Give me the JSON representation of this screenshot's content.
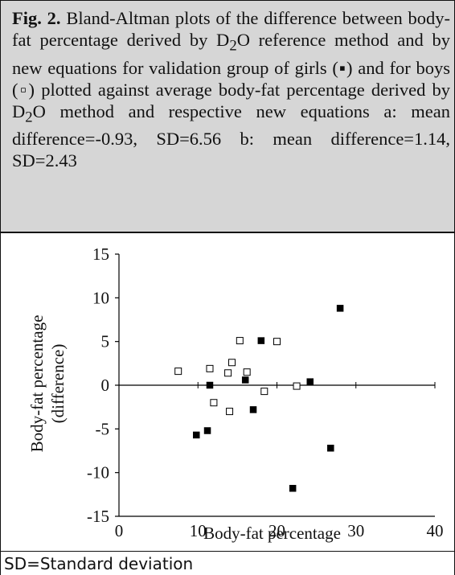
{
  "caption": {
    "label": "Fig. 2.",
    "text_1": " Bland-Altman plots of the difference between body-fat percentage derived by D",
    "sub_1": "2",
    "text_2": "O reference method and by new equations for validation group of girls (▪) and for boys (▫) plotted against average body-fat percentage derived by D",
    "sub_2": "2",
    "text_3": "O method and respective new equations a: mean difference=-0.93, SD=6.56 b: mean difference=1.14, SD=2.43"
  },
  "footnote": "SD=Standard deviation",
  "colors": {
    "caption_bg": "#d6d6d6",
    "girls": "#000000",
    "boys": "#ffffff",
    "axis": "#000000"
  },
  "chart_data": {
    "type": "scatter",
    "xlabel": "Body-fat percentage",
    "ylabel_line1": "Body-fat percentage",
    "ylabel_line2": "(difference)",
    "xlim": [
      0,
      40
    ],
    "ylim": [
      -15,
      15
    ],
    "xticks": [
      0,
      10,
      20,
      30,
      40
    ],
    "yticks": [
      15,
      10,
      5,
      0,
      -5,
      -10,
      -15
    ],
    "grid": false,
    "series": [
      {
        "marker": "filled-square",
        "points": [
          {
            "x": 9.8,
            "y": -5.7
          },
          {
            "x": 11.2,
            "y": -5.2
          },
          {
            "x": 11.5,
            "y": 0.0
          },
          {
            "x": 16.0,
            "y": 0.6
          },
          {
            "x": 17.0,
            "y": -2.8
          },
          {
            "x": 18.0,
            "y": 5.1
          },
          {
            "x": 22.0,
            "y": -11.8
          },
          {
            "x": 24.2,
            "y": 0.4
          },
          {
            "x": 26.8,
            "y": -7.2
          },
          {
            "x": 28.0,
            "y": 8.8
          }
        ]
      },
      {
        "marker": "open-square",
        "points": [
          {
            "x": 7.5,
            "y": 1.6
          },
          {
            "x": 11.5,
            "y": 1.9
          },
          {
            "x": 12.0,
            "y": -2.0
          },
          {
            "x": 13.8,
            "y": 1.4
          },
          {
            "x": 14.0,
            "y": -3.0
          },
          {
            "x": 14.3,
            "y": 2.6
          },
          {
            "x": 15.3,
            "y": 5.1
          },
          {
            "x": 16.2,
            "y": 1.5
          },
          {
            "x": 18.4,
            "y": -0.7
          },
          {
            "x": 20.0,
            "y": 5.0
          },
          {
            "x": 22.5,
            "y": -0.1
          }
        ]
      }
    ]
  }
}
